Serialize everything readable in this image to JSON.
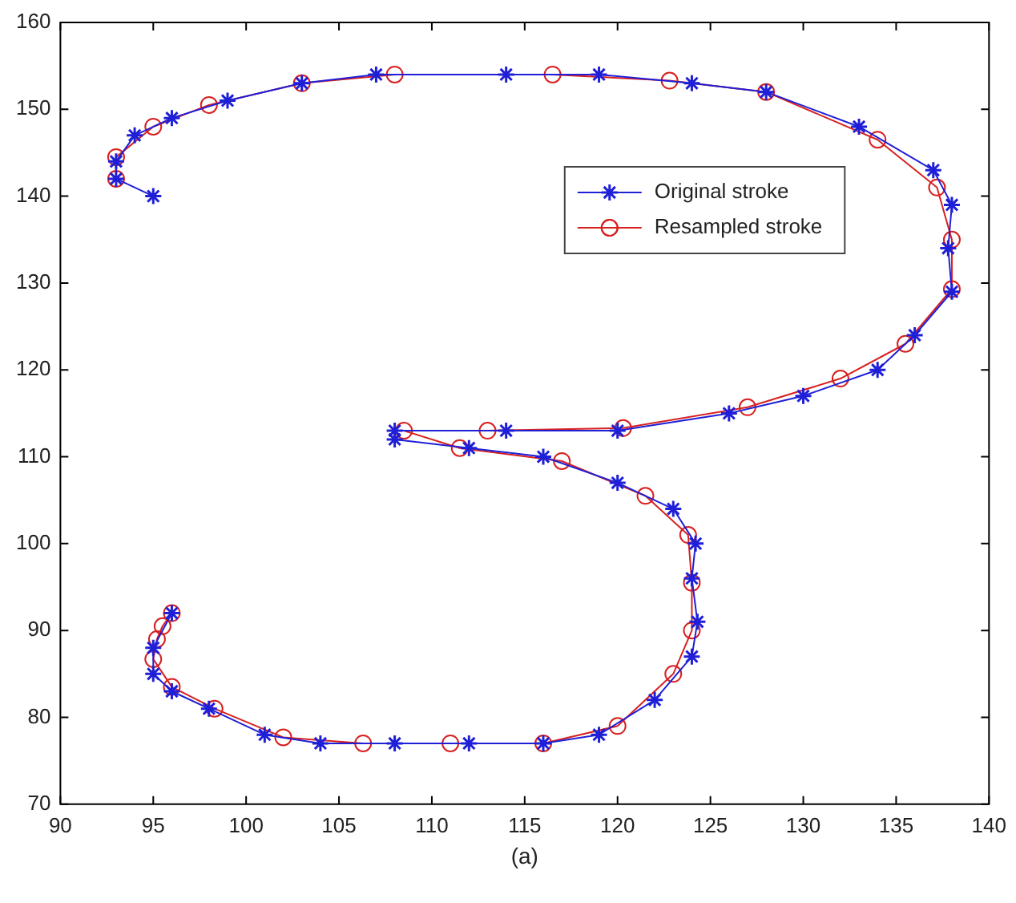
{
  "chart_data": {
    "type": "line",
    "xlim": [
      90,
      140
    ],
    "ylim": [
      70,
      160
    ],
    "xticks": [
      90,
      95,
      100,
      105,
      110,
      115,
      120,
      125,
      130,
      135,
      140
    ],
    "yticks": [
      70,
      80,
      90,
      100,
      110,
      120,
      130,
      140,
      150,
      160
    ],
    "grid": false,
    "legend": "top right",
    "annotations": [
      "(a)"
    ],
    "series": [
      {
        "name": "Original stroke",
        "color": "#1f1fd8",
        "marker": "cross",
        "x": [
          95,
          93,
          93,
          94,
          96,
          99,
          103,
          107,
          114,
          119,
          124,
          128,
          133,
          137,
          138,
          137.8,
          138,
          136,
          134,
          130,
          126,
          120,
          114,
          108,
          108,
          112,
          116,
          120,
          123,
          124.2,
          124,
          124.3,
          124,
          122,
          119,
          116,
          112,
          108,
          104,
          101,
          98,
          96,
          95,
          95,
          96
        ],
        "values": [
          140,
          142,
          144,
          147,
          149,
          151,
          153,
          154,
          154,
          154,
          153,
          152,
          148,
          143,
          139,
          134,
          129,
          124,
          120,
          117,
          115,
          113,
          113,
          113,
          112,
          111,
          110,
          107,
          104,
          100,
          96,
          91,
          87,
          82,
          78,
          77,
          77,
          77,
          77,
          78,
          81,
          83,
          85,
          88,
          92
        ]
      },
      {
        "name": "Resampled stroke",
        "color": "#d82020",
        "marker": "circle",
        "x": [
          93,
          93,
          95,
          98,
          103,
          108,
          116.5,
          122.8,
          128,
          134,
          137.2,
          138,
          138,
          135.5,
          132,
          127,
          120.3,
          113,
          108.5,
          111.5,
          117,
          121.5,
          123.8,
          124,
          124,
          123,
          120,
          116,
          111,
          106.3,
          102,
          98.3,
          96,
          95,
          95.2,
          95.5,
          96
        ],
        "values": [
          142,
          144.5,
          148,
          150.5,
          153,
          154,
          154,
          153.3,
          152,
          146.5,
          141,
          135,
          129.3,
          123,
          119,
          115.7,
          113.3,
          113,
          113,
          111,
          109.5,
          105.5,
          101,
          95.5,
          90,
          85,
          79,
          77,
          77,
          77,
          77.7,
          81,
          83.5,
          86.7,
          89,
          90.5,
          92
        ]
      }
    ]
  }
}
